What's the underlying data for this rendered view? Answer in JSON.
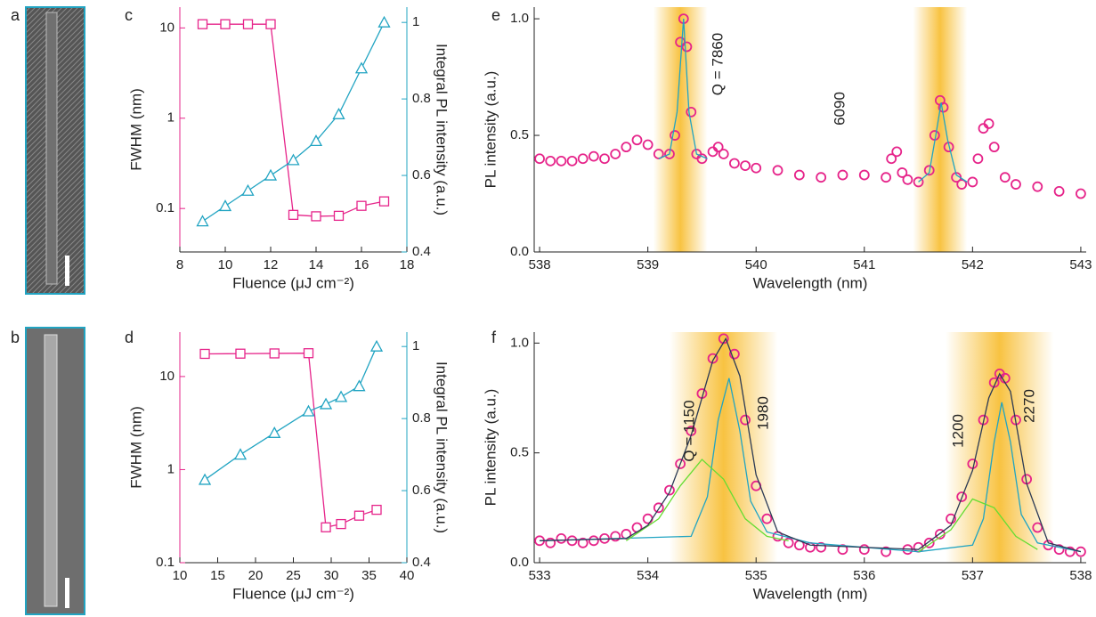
{
  "panel_labels": [
    "a",
    "b",
    "c",
    "d",
    "e",
    "f"
  ],
  "chart_data": [
    {
      "type": "dual-axis-line",
      "xlabel": "Fluence (μJ cm⁻²)",
      "ylabel": "FWHM (nm)",
      "y2label": "Integral PL intensity (a.u.)",
      "xlim": [
        8,
        18
      ],
      "xticks": [
        8,
        10,
        12,
        14,
        16,
        18
      ],
      "ylim": [
        0.033,
        17
      ],
      "ylog": true,
      "yticks": [
        0.1,
        1,
        10
      ],
      "y2lim": [
        0.4,
        1.04
      ],
      "y2ticks": [
        0.4,
        0.6,
        0.8,
        1
      ],
      "x": [
        9,
        10,
        11,
        12,
        13,
        14,
        15,
        16,
        17
      ],
      "series": [
        {
          "color": "#e6248a",
          "marker": "square",
          "values": [
            11,
            11,
            11,
            11,
            0.085,
            0.082,
            0.083,
            0.107,
            0.12
          ]
        },
        {
          "color": "#21a4c2",
          "marker": "triangle",
          "axis": "y2",
          "values": [
            0.48,
            0.52,
            0.56,
            0.6,
            0.64,
            0.69,
            0.76,
            0.88,
            1.0
          ]
        }
      ]
    },
    {
      "type": "dual-axis-line",
      "xlabel": "Fluence (μJ cm⁻²)",
      "ylabel": "FWHM (nm)",
      "y2label": "Integral PL intensity (a.u.)",
      "xlim": [
        10,
        40
      ],
      "xticks": [
        10,
        15,
        20,
        25,
        30,
        35,
        40
      ],
      "ylim": [
        0.1,
        30
      ],
      "ylog": true,
      "yticks": [
        0.1,
        1,
        10
      ],
      "y2lim": [
        0.4,
        1.04
      ],
      "y2ticks": [
        0.4,
        0.6,
        0.8,
        1
      ],
      "x": [
        13.3,
        18,
        22.5,
        27,
        29.3,
        31.3,
        33.7,
        36
      ],
      "series": [
        {
          "color": "#e6248a",
          "marker": "square",
          "values": [
            17.5,
            17.6,
            17.7,
            17.8,
            0.24,
            0.26,
            0.32,
            0.37
          ]
        },
        {
          "color": "#21a4c2",
          "marker": "triangle",
          "axis": "y2",
          "values": [
            0.63,
            0.7,
            0.76,
            0.82,
            0.84,
            0.86,
            0.89,
            1.0
          ]
        }
      ]
    },
    {
      "type": "scatter-fit",
      "xlabel": "Wavelength (nm)",
      "ylabel": "PL intensity (a.u.)",
      "xlim": [
        537.95,
        543.05
      ],
      "xticks": [
        538,
        539,
        540,
        541,
        542,
        543
      ],
      "ylim": [
        0,
        1.05
      ],
      "yticks": [
        {
          "value": 0,
          "label": "0.0"
        },
        {
          "value": 0.5,
          "label": "0.5"
        },
        {
          "value": 1,
          "label": "1.0"
        }
      ],
      "highlights": [
        [
          539.05,
          539.55
        ],
        [
          541.45,
          541.95
        ]
      ],
      "points": {
        "color": "#e6248a",
        "x": [
          538.0,
          538.1,
          538.2,
          538.3,
          538.4,
          538.5,
          538.6,
          538.7,
          538.8,
          538.9,
          539.0,
          539.1,
          539.2,
          539.25,
          539.3,
          539.33,
          539.36,
          539.4,
          539.45,
          539.5,
          539.6,
          539.65,
          539.7,
          539.8,
          539.9,
          540.0,
          540.2,
          540.4,
          540.6,
          540.8,
          541.0,
          541.2,
          541.25,
          541.3,
          541.35,
          541.4,
          541.5,
          541.6,
          541.65,
          541.7,
          541.73,
          541.78,
          541.85,
          541.9,
          542.0,
          542.05,
          542.1,
          542.15,
          542.2,
          542.3,
          542.4,
          542.6,
          542.8,
          543.0
        ],
        "values": [
          0.4,
          0.39,
          0.39,
          0.39,
          0.4,
          0.41,
          0.4,
          0.42,
          0.45,
          0.48,
          0.46,
          0.42,
          0.42,
          0.5,
          0.9,
          1.0,
          0.88,
          0.6,
          0.42,
          0.4,
          0.43,
          0.45,
          0.42,
          0.38,
          0.37,
          0.36,
          0.35,
          0.33,
          0.32,
          0.33,
          0.33,
          0.32,
          0.4,
          0.43,
          0.34,
          0.31,
          0.3,
          0.35,
          0.5,
          0.65,
          0.62,
          0.45,
          0.32,
          0.29,
          0.3,
          0.4,
          0.53,
          0.55,
          0.45,
          0.32,
          0.29,
          0.28,
          0.26,
          0.25
        ]
      },
      "fits": [
        {
          "color": "#21a4c2",
          "x": [
            539.1,
            539.2,
            539.27,
            539.33,
            539.38,
            539.45,
            539.55,
            null,
            541.5,
            541.6,
            541.66,
            541.71,
            541.77,
            541.85,
            541.95
          ],
          "values": [
            0.4,
            0.42,
            0.6,
            1.0,
            0.6,
            0.42,
            0.4,
            null,
            0.3,
            0.34,
            0.5,
            0.64,
            0.48,
            0.33,
            0.3
          ]
        }
      ],
      "annotations": [
        {
          "text": "Q = 7860",
          "color": "#21a4c2"
        },
        {
          "text": "6090",
          "color": "#21a4c2"
        }
      ]
    },
    {
      "type": "scatter-fit",
      "xlabel": "Wavelength (nm)",
      "ylabel": "PL intensity (a.u.)",
      "xlim": [
        532.95,
        538.05
      ],
      "xticks": [
        533,
        534,
        535,
        536,
        537,
        538
      ],
      "ylim": [
        0,
        1.05
      ],
      "yticks": [
        {
          "value": 0,
          "label": "0.0"
        },
        {
          "value": 0.5,
          "label": "0.5"
        },
        {
          "value": 1,
          "label": "1.0"
        }
      ],
      "highlights": [
        [
          534.2,
          535.2
        ],
        [
          536.75,
          537.75
        ]
      ],
      "points": {
        "color": "#e6248a",
        "x": [
          533.0,
          533.1,
          533.2,
          533.3,
          533.4,
          533.5,
          533.6,
          533.7,
          533.8,
          533.9,
          534.0,
          534.1,
          534.2,
          534.3,
          534.4,
          534.5,
          534.6,
          534.7,
          534.8,
          534.9,
          535.0,
          535.1,
          535.2,
          535.3,
          535.4,
          535.5,
          535.6,
          535.8,
          536.0,
          536.2,
          536.4,
          536.5,
          536.6,
          536.7,
          536.8,
          536.9,
          537.0,
          537.1,
          537.2,
          537.25,
          537.3,
          537.4,
          537.5,
          537.6,
          537.7,
          537.8,
          537.9,
          538.0
        ],
        "values": [
          0.1,
          0.09,
          0.11,
          0.1,
          0.09,
          0.1,
          0.11,
          0.12,
          0.13,
          0.16,
          0.2,
          0.25,
          0.33,
          0.45,
          0.6,
          0.77,
          0.93,
          1.02,
          0.95,
          0.65,
          0.35,
          0.2,
          0.12,
          0.09,
          0.08,
          0.07,
          0.07,
          0.06,
          0.06,
          0.05,
          0.06,
          0.07,
          0.09,
          0.13,
          0.2,
          0.3,
          0.45,
          0.65,
          0.82,
          0.86,
          0.84,
          0.65,
          0.38,
          0.16,
          0.08,
          0.06,
          0.05,
          0.05
        ]
      },
      "fits": [
        {
          "color": "#21a4c2",
          "x": [
            533.0,
            534.4,
            534.55,
            534.65,
            534.75,
            534.85,
            534.95,
            535.1,
            535.5,
            536.5,
            537.0,
            537.1,
            537.2,
            537.27,
            537.35,
            537.45,
            537.6,
            538.0
          ],
          "values": [
            0.1,
            0.12,
            0.3,
            0.65,
            0.84,
            0.6,
            0.28,
            0.14,
            0.09,
            0.05,
            0.08,
            0.2,
            0.55,
            0.73,
            0.55,
            0.22,
            0.09,
            0.05
          ]
        },
        {
          "color": "#66dd33",
          "x": [
            533.8,
            534.1,
            534.3,
            534.5,
            534.7,
            534.9,
            535.1,
            535.3,
            null,
            536.5,
            536.8,
            537.0,
            537.2,
            537.4,
            537.6
          ],
          "values": [
            0.1,
            0.2,
            0.35,
            0.47,
            0.38,
            0.2,
            0.12,
            0.1,
            null,
            0.05,
            0.15,
            0.29,
            0.25,
            0.12,
            0.06
          ]
        },
        {
          "color": "#2b3a55",
          "x": [
            533.0,
            533.8,
            534.0,
            534.2,
            534.4,
            534.6,
            534.72,
            534.85,
            535.0,
            535.2,
            535.5,
            536.5,
            536.8,
            537.0,
            537.15,
            537.25,
            537.35,
            537.5,
            537.7,
            538.0
          ],
          "values": [
            0.1,
            0.11,
            0.17,
            0.32,
            0.58,
            0.92,
            1.02,
            0.85,
            0.4,
            0.14,
            0.08,
            0.06,
            0.17,
            0.42,
            0.75,
            0.86,
            0.78,
            0.36,
            0.09,
            0.05
          ]
        }
      ],
      "annotations": [
        {
          "text": "Q = 1150",
          "color": "#66dd33"
        },
        {
          "text": "1980",
          "color": "#21a4c2"
        },
        {
          "text": "1200",
          "color": "#66dd33"
        },
        {
          "text": "2270",
          "color": "#21a4c2"
        }
      ]
    }
  ]
}
